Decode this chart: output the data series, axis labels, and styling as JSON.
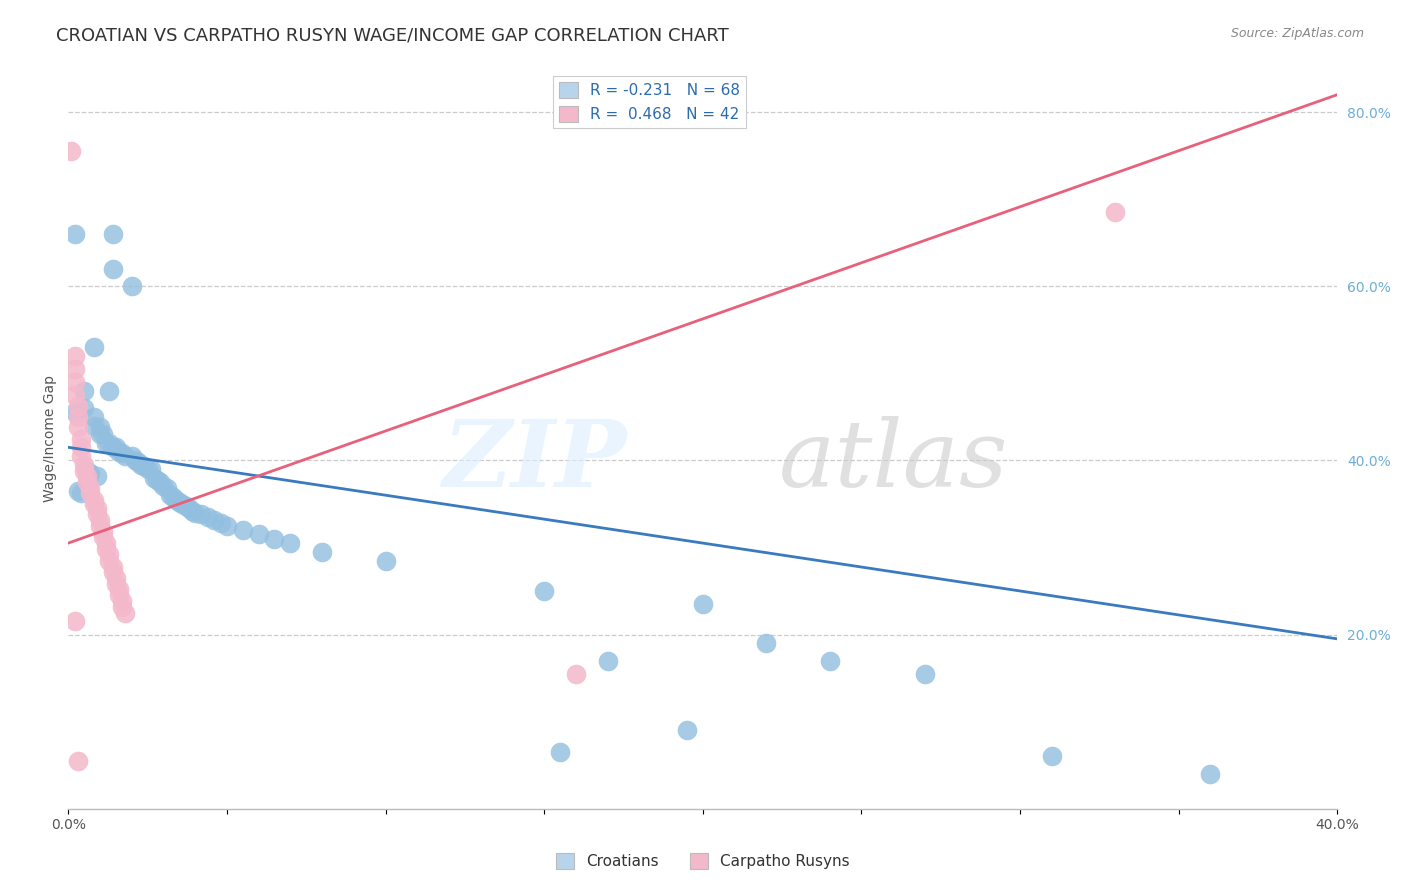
{
  "title": "CROATIAN VS CARPATHO RUSYN WAGE/INCOME GAP CORRELATION CHART",
  "source": "Source: ZipAtlas.com",
  "ylabel": "Wage/Income Gap",
  "xlim": [
    0.0,
    0.4
  ],
  "ylim": [
    0.0,
    0.85
  ],
  "xtick_positions": [
    0.0,
    0.05,
    0.1,
    0.15,
    0.2,
    0.25,
    0.3,
    0.35,
    0.4
  ],
  "xtick_labels": [
    "0.0%",
    "",
    "",
    "",
    "",
    "",
    "",
    "",
    "40.0%"
  ],
  "yticks_right": [
    0.2,
    0.4,
    0.6,
    0.8
  ],
  "ytick_labels_right": [
    "20.0%",
    "40.0%",
    "60.0%",
    "80.0%"
  ],
  "grid_yticks": [
    0.2,
    0.4,
    0.6,
    0.8
  ],
  "croatians_scatter": [
    [
      0.002,
      0.66
    ],
    [
      0.014,
      0.66
    ],
    [
      0.014,
      0.62
    ],
    [
      0.02,
      0.6
    ],
    [
      0.008,
      0.53
    ],
    [
      0.013,
      0.48
    ],
    [
      0.005,
      0.48
    ],
    [
      0.005,
      0.46
    ],
    [
      0.002,
      0.455
    ],
    [
      0.008,
      0.45
    ],
    [
      0.008,
      0.44
    ],
    [
      0.01,
      0.438
    ],
    [
      0.01,
      0.43
    ],
    [
      0.011,
      0.43
    ],
    [
      0.012,
      0.42
    ],
    [
      0.013,
      0.42
    ],
    [
      0.014,
      0.415
    ],
    [
      0.015,
      0.415
    ],
    [
      0.016,
      0.41
    ],
    [
      0.017,
      0.408
    ],
    [
      0.018,
      0.405
    ],
    [
      0.02,
      0.405
    ],
    [
      0.021,
      0.4
    ],
    [
      0.022,
      0.398
    ],
    [
      0.023,
      0.395
    ],
    [
      0.024,
      0.393
    ],
    [
      0.025,
      0.39
    ],
    [
      0.026,
      0.39
    ],
    [
      0.006,
      0.388
    ],
    [
      0.007,
      0.385
    ],
    [
      0.009,
      0.382
    ],
    [
      0.027,
      0.38
    ],
    [
      0.028,
      0.378
    ],
    [
      0.029,
      0.375
    ],
    [
      0.03,
      0.37
    ],
    [
      0.031,
      0.368
    ],
    [
      0.003,
      0.365
    ],
    [
      0.004,
      0.362
    ],
    [
      0.032,
      0.36
    ],
    [
      0.033,
      0.358
    ],
    [
      0.034,
      0.355
    ],
    [
      0.035,
      0.352
    ],
    [
      0.036,
      0.35
    ],
    [
      0.037,
      0.348
    ],
    [
      0.038,
      0.345
    ],
    [
      0.039,
      0.342
    ],
    [
      0.04,
      0.34
    ],
    [
      0.042,
      0.338
    ],
    [
      0.044,
      0.335
    ],
    [
      0.046,
      0.332
    ],
    [
      0.048,
      0.328
    ],
    [
      0.05,
      0.325
    ],
    [
      0.055,
      0.32
    ],
    [
      0.06,
      0.315
    ],
    [
      0.065,
      0.31
    ],
    [
      0.07,
      0.305
    ],
    [
      0.08,
      0.295
    ],
    [
      0.1,
      0.285
    ],
    [
      0.15,
      0.25
    ],
    [
      0.2,
      0.235
    ],
    [
      0.17,
      0.17
    ],
    [
      0.22,
      0.19
    ],
    [
      0.24,
      0.17
    ],
    [
      0.27,
      0.155
    ],
    [
      0.155,
      0.065
    ],
    [
      0.195,
      0.09
    ],
    [
      0.31,
      0.06
    ],
    [
      0.36,
      0.04
    ]
  ],
  "rusyn_scatter": [
    [
      0.001,
      0.755
    ],
    [
      0.002,
      0.52
    ],
    [
      0.002,
      0.505
    ],
    [
      0.002,
      0.49
    ],
    [
      0.002,
      0.475
    ],
    [
      0.003,
      0.462
    ],
    [
      0.003,
      0.45
    ],
    [
      0.003,
      0.438
    ],
    [
      0.004,
      0.425
    ],
    [
      0.004,
      0.415
    ],
    [
      0.004,
      0.405
    ],
    [
      0.005,
      0.395
    ],
    [
      0.005,
      0.388
    ],
    [
      0.006,
      0.382
    ],
    [
      0.006,
      0.375
    ],
    [
      0.007,
      0.368
    ],
    [
      0.007,
      0.362
    ],
    [
      0.008,
      0.355
    ],
    [
      0.008,
      0.35
    ],
    [
      0.009,
      0.345
    ],
    [
      0.009,
      0.338
    ],
    [
      0.01,
      0.332
    ],
    [
      0.01,
      0.325
    ],
    [
      0.011,
      0.318
    ],
    [
      0.011,
      0.312
    ],
    [
      0.012,
      0.305
    ],
    [
      0.012,
      0.298
    ],
    [
      0.013,
      0.292
    ],
    [
      0.013,
      0.285
    ],
    [
      0.014,
      0.278
    ],
    [
      0.014,
      0.272
    ],
    [
      0.015,
      0.265
    ],
    [
      0.015,
      0.258
    ],
    [
      0.016,
      0.252
    ],
    [
      0.016,
      0.245
    ],
    [
      0.017,
      0.238
    ],
    [
      0.017,
      0.232
    ],
    [
      0.018,
      0.225
    ],
    [
      0.002,
      0.215
    ],
    [
      0.003,
      0.055
    ],
    [
      0.33,
      0.685
    ],
    [
      0.16,
      0.155
    ]
  ],
  "croatian_line": {
    "x": [
      0.0,
      0.4
    ],
    "y": [
      0.415,
      0.195
    ]
  },
  "rusyn_line": {
    "x": [
      0.0,
      0.4
    ],
    "y": [
      0.305,
      0.82
    ]
  },
  "croatian_color": "#92bfdf",
  "rusyn_color": "#f4b8cb",
  "croatian_line_color": "#3a7abf",
  "rusyn_line_color": "#e8607a",
  "legend_box_croatian": "#b8d4ec",
  "legend_box_rusyn": "#f4b8cb",
  "background_color": "#ffffff",
  "grid_color": "#cccccc",
  "title_fontsize": 13,
  "axis_label_fontsize": 10,
  "tick_fontsize": 10,
  "legend_r_n_1": "R = -0.231   N = 68",
  "legend_r_n_2": "R =  0.468   N = 42",
  "bottom_legend_croatians": "Croatians",
  "bottom_legend_rusyns": "Carpatho Rusyns"
}
